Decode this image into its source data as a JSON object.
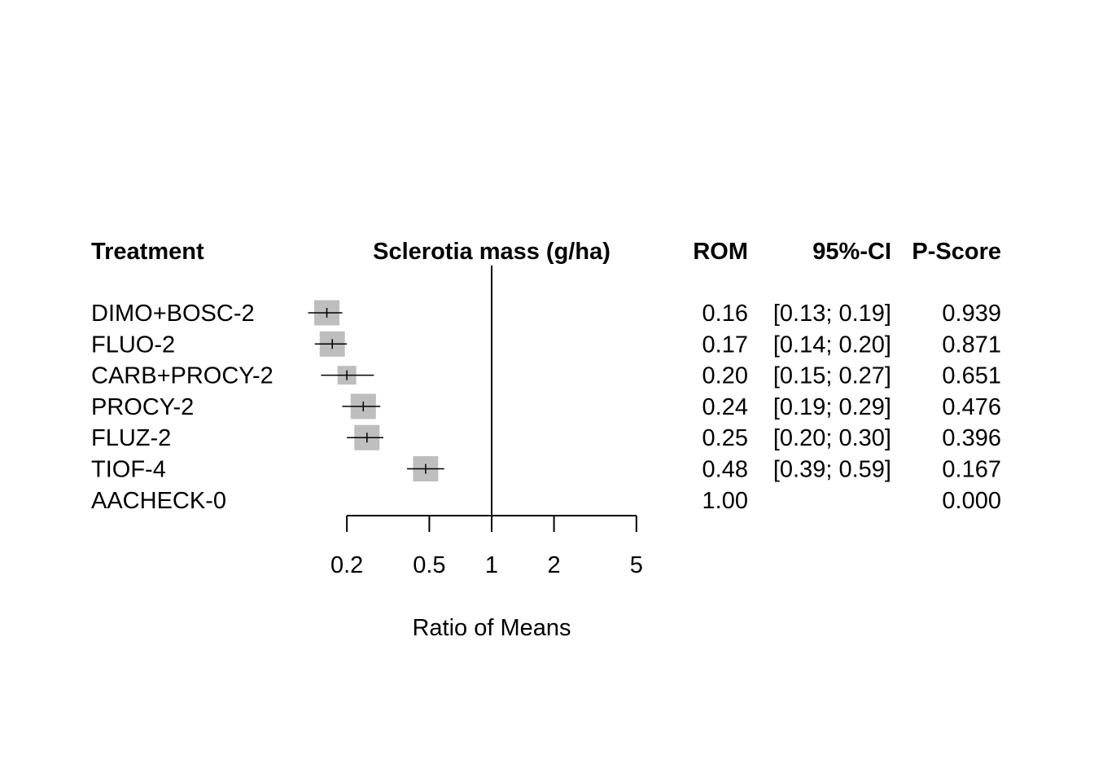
{
  "chart_data": {
    "type": "forest",
    "headers": {
      "treatment": "Treatment",
      "effect": "Sclerotia mass (g/ha)",
      "rom": "ROM",
      "ci": "95%-CI",
      "pscore": "P-Score"
    },
    "xlabel": "Ratio of Means",
    "x_scale": "log",
    "xlim": [
      0.125,
      5
    ],
    "x_ticks": [
      0.2,
      0.5,
      1,
      2,
      5
    ],
    "x_tick_labels": [
      "0.2",
      "0.5",
      "1",
      "2",
      "5"
    ],
    "reference_line": 1,
    "rows": [
      {
        "treatment": "DIMO+BOSC-2",
        "rom": 0.16,
        "lower": 0.13,
        "upper": 0.19,
        "rom_text": "0.16",
        "ci_text": "[0.13; 0.19]",
        "pscore": 0.939,
        "pscore_text": "0.939"
      },
      {
        "treatment": "FLUO-2",
        "rom": 0.17,
        "lower": 0.14,
        "upper": 0.2,
        "rom_text": "0.17",
        "ci_text": "[0.14; 0.20]",
        "pscore": 0.871,
        "pscore_text": "0.871"
      },
      {
        "treatment": "CARB+PROCY-2",
        "rom": 0.2,
        "lower": 0.15,
        "upper": 0.27,
        "rom_text": "0.20",
        "ci_text": "[0.15; 0.27]",
        "pscore": 0.651,
        "pscore_text": "0.651"
      },
      {
        "treatment": "PROCY-2",
        "rom": 0.24,
        "lower": 0.19,
        "upper": 0.29,
        "rom_text": "0.24",
        "ci_text": "[0.19; 0.29]",
        "pscore": 0.476,
        "pscore_text": "0.476"
      },
      {
        "treatment": "FLUZ-2",
        "rom": 0.25,
        "lower": 0.2,
        "upper": 0.3,
        "rom_text": "0.25",
        "ci_text": "[0.20; 0.30]",
        "pscore": 0.396,
        "pscore_text": "0.396"
      },
      {
        "treatment": "TIOF-4",
        "rom": 0.48,
        "lower": 0.39,
        "upper": 0.59,
        "rom_text": "0.48",
        "ci_text": "[0.39; 0.59]",
        "pscore": 0.167,
        "pscore_text": "0.167"
      },
      {
        "treatment": "AACHECK-0",
        "rom": 1.0,
        "lower": null,
        "upper": null,
        "rom_text": "1.00",
        "ci_text": "",
        "pscore": 0.0,
        "pscore_text": "0.000"
      }
    ],
    "colors": {
      "box": "#bebebe",
      "line": "#000000"
    }
  }
}
